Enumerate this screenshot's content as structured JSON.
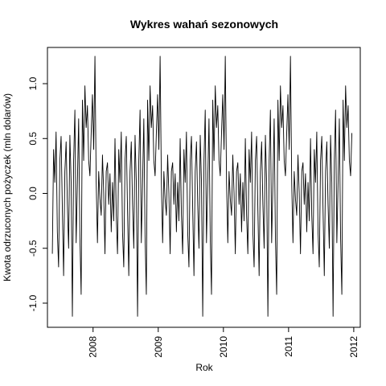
{
  "chart_data": {
    "type": "line",
    "title": "Wykres wahań sezonowych",
    "xlabel": "Rok",
    "ylabel": "Kwota odrzuconych pożyczek (mln dolarów)",
    "xlim": [
      2007.3,
      2012.1
    ],
    "ylim": [
      -1.22,
      1.33
    ],
    "x_ticks": [
      2008,
      2009,
      2010,
      2011,
      2012
    ],
    "y_ticks": [
      -1.0,
      -0.5,
      0.0,
      0.5,
      1.0
    ],
    "y_tick_labels": [
      "-1.0",
      "-0.5",
      "0.0",
      "0.5",
      "1.0"
    ],
    "grid": false,
    "legend": "none",
    "x_start": 2007.375,
    "points_per_year": 52,
    "num_years": 4.615,
    "seasonal_pattern": [
      -0.55,
      0.4,
      0.1,
      0.56,
      -0.35,
      -0.67,
      0.3,
      0.52,
      -0.15,
      -0.75,
      0.2,
      0.47,
      -0.1,
      -0.5,
      0.53,
      0.1,
      -1.12,
      0.3,
      0.76,
      -0.45,
      0.1,
      0.68,
      -0.4,
      -0.92,
      0.85,
      0.3,
      0.98,
      0.6,
      0.8,
      0.3,
      0.16,
      0.55,
      0.9,
      0.4,
      1.25,
      0.1,
      -0.45,
      0.2,
      -0.05,
      -0.2,
      0.35,
      0.0,
      -0.55,
      0.2,
      0.28,
      -0.1,
      0.18,
      -0.35,
      0.1,
      -0.25,
      0.5,
      -0.2
    ]
  }
}
